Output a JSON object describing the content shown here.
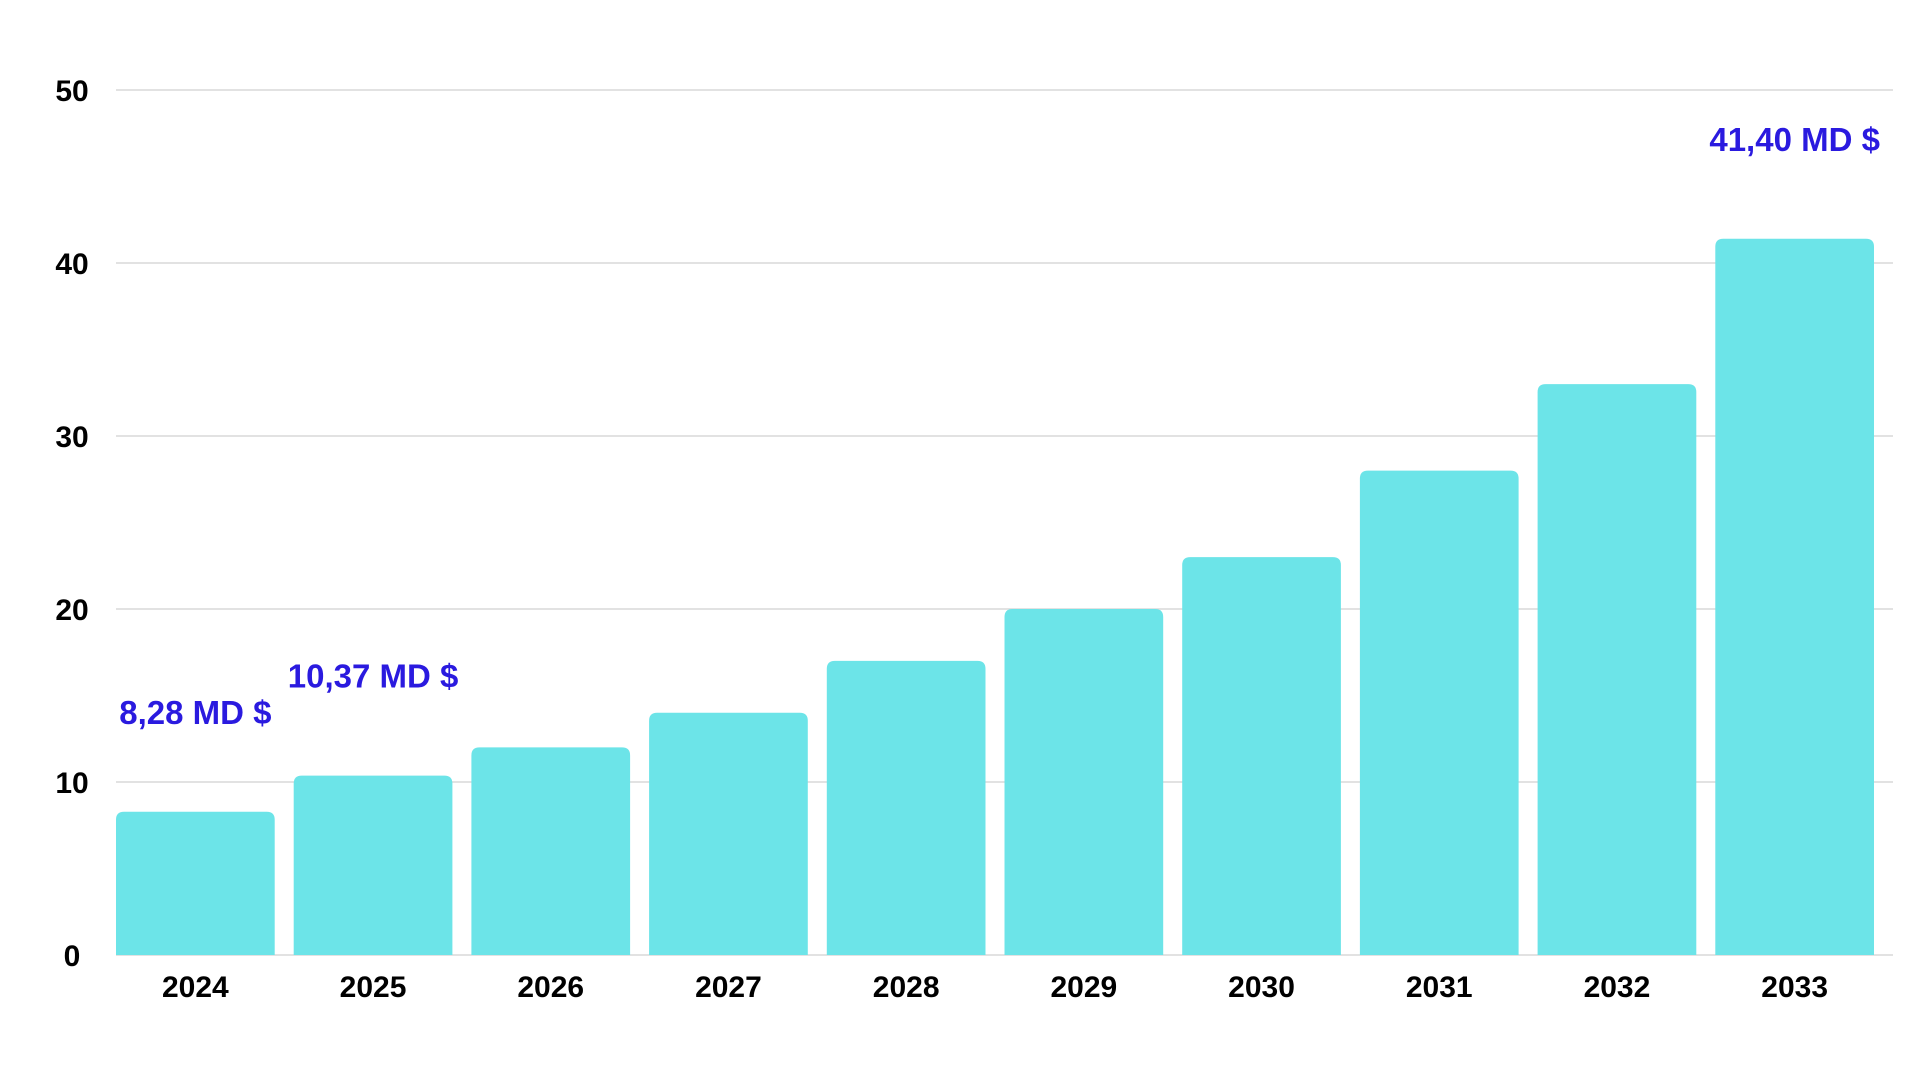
{
  "chart_data": {
    "type": "bar",
    "title": "",
    "xlabel": "",
    "ylabel": "",
    "categories": [
      "2024",
      "2025",
      "2026",
      "2027",
      "2028",
      "2029",
      "2030",
      "2031",
      "2032",
      "2033"
    ],
    "values": [
      8.28,
      10.37,
      12,
      14,
      17,
      20,
      23,
      28,
      33,
      41.4
    ],
    "ylim": [
      0,
      50
    ],
    "yticks": [
      "0",
      "10",
      "20",
      "30",
      "40",
      "50"
    ],
    "grid": true,
    "legend": "none",
    "colors": {
      "bar": "#6ce4e8",
      "data_label": "#2a1adf",
      "tick_label": "#000000",
      "gridline": "#d9d9d9"
    },
    "data_labels": [
      {
        "category": "2024",
        "text": "8,28 MD $"
      },
      {
        "category": "2025",
        "text": "10,37 MD $"
      },
      {
        "category": "2033",
        "text": "41,40 MD $"
      }
    ]
  }
}
